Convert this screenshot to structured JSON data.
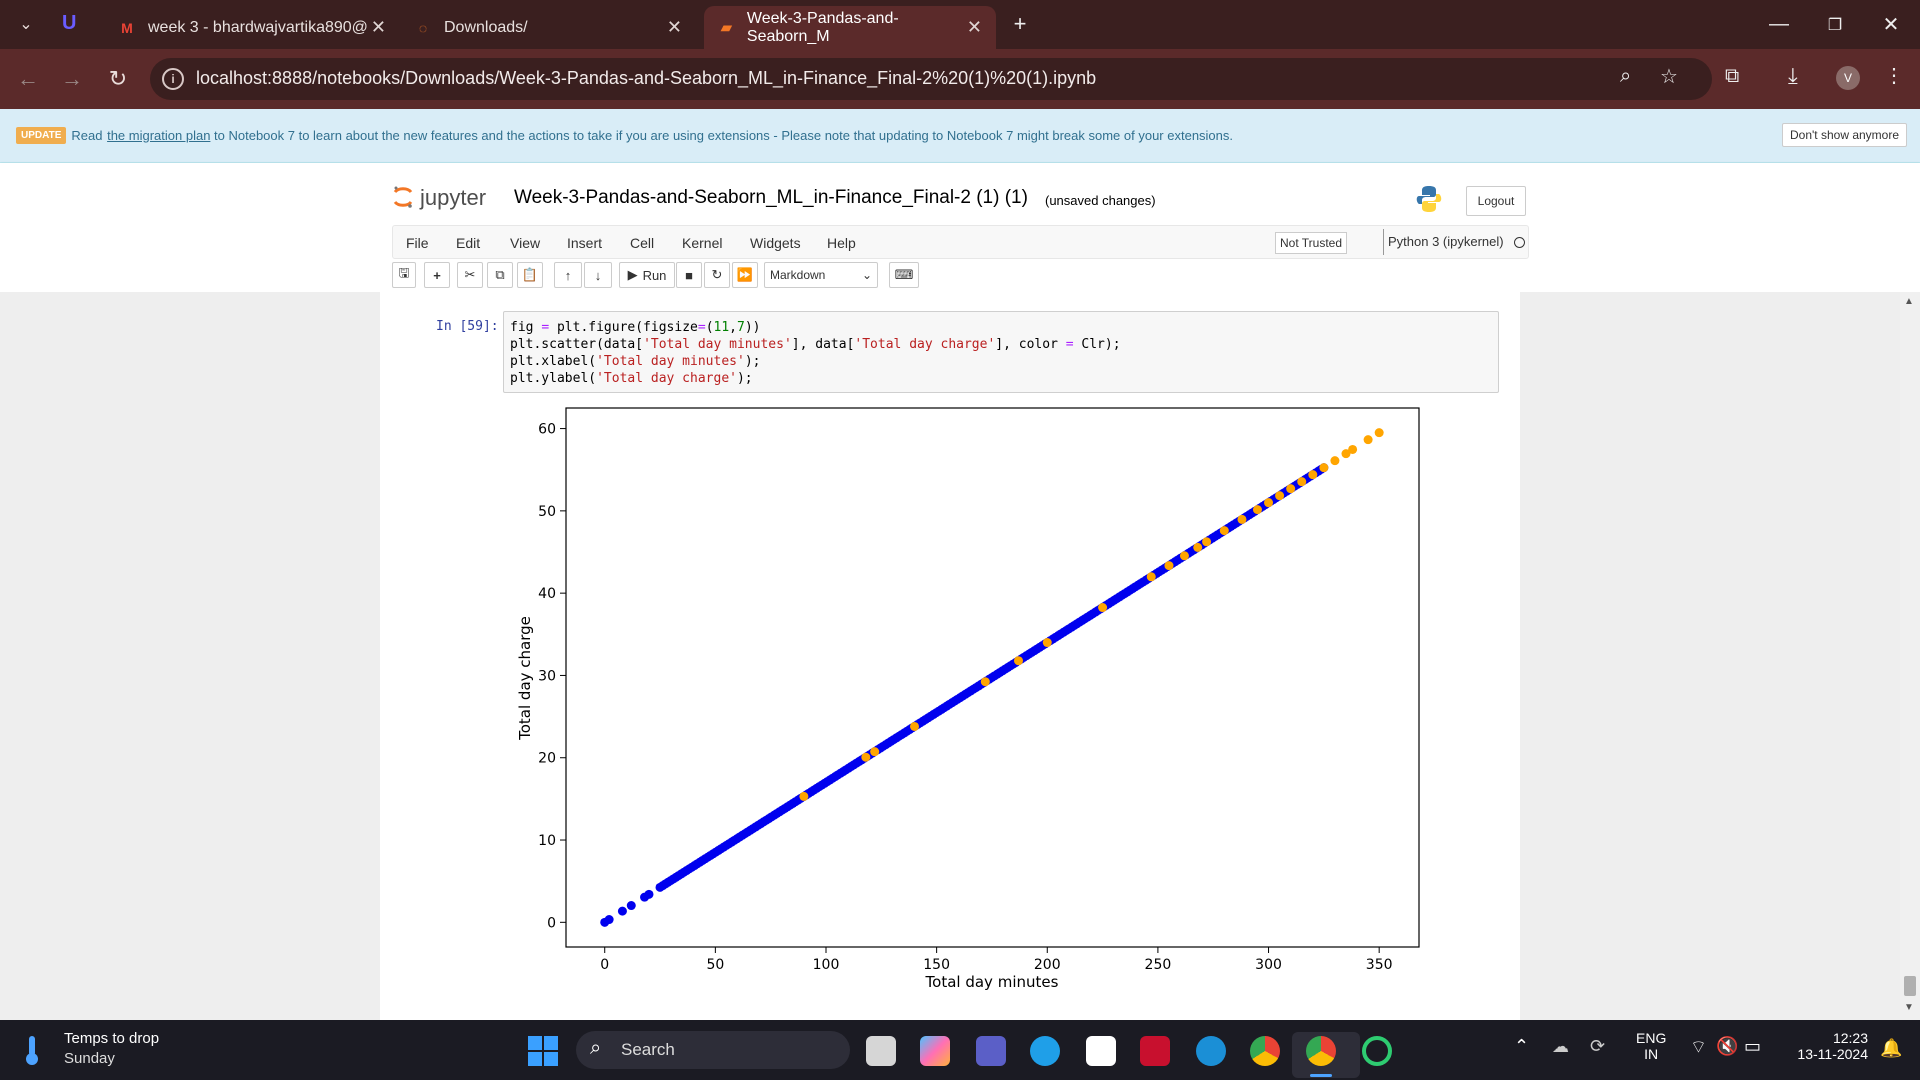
{
  "browser": {
    "tabs": [
      {
        "title": "week 3 - bhardwajvartika890@",
        "icon": "gmail-icon"
      },
      {
        "title": "Downloads/",
        "icon": "jupyter-icon"
      },
      {
        "title": "Week-3-Pandas-and-Seaborn_M",
        "icon": "notebook-icon"
      }
    ],
    "url": "localhost:8888/notebooks/Downloads/Week-3-Pandas-and-Seaborn_ML_in-Finance_Final-2%20(1)%20(1).ipynb",
    "profile_initial": "V"
  },
  "banner": {
    "badge": "UPDATE",
    "text_before": "Read ",
    "link": "the migration plan",
    "text_after": " to Notebook 7 to learn about the new features and the actions to take if you are using extensions - Please note that updating to Notebook 7 might break some of your extensions.",
    "dismiss": "Don't show anymore"
  },
  "jupyter": {
    "logo_text": "jupyter",
    "notebook_title": "Week-3-Pandas-and-Seaborn_ML_in-Finance_Final-2 (1) (1)",
    "save_status": "(unsaved changes)",
    "logout": "Logout",
    "menus": [
      "File",
      "Edit",
      "View",
      "Insert",
      "Cell",
      "Kernel",
      "Widgets",
      "Help"
    ],
    "trust": "Not Trusted",
    "kernel": "Python 3 (ipykernel)",
    "run_label": "Run",
    "cell_type": "Markdown"
  },
  "cell": {
    "prompt": "In [59]:",
    "code_lines": [
      "fig = plt.figure(figsize=(11,7))",
      "plt.scatter(data['Total day minutes'], data['Total day charge'], color = Clr);",
      "plt.xlabel('Total day minutes');",
      "plt.ylabel('Total day charge');"
    ]
  },
  "chart_data": {
    "type": "scatter",
    "xlabel": "Total day minutes",
    "ylabel": "Total day charge",
    "xlim": [
      -17.5,
      368
    ],
    "ylim": [
      -3,
      62.5
    ],
    "xticks": [
      0,
      50,
      100,
      150,
      200,
      250,
      300,
      350
    ],
    "yticks": [
      0,
      10,
      20,
      30,
      40,
      50,
      60
    ],
    "relationship": "charge = 0.17 × minutes",
    "colors": {
      "blue": "#0000ee",
      "orange": "#ffa500"
    },
    "series": [
      {
        "color": "blue",
        "x_range": [
          0,
          325
        ],
        "note": "dense points along the line"
      },
      {
        "color": "orange",
        "x": [
          90,
          118,
          122,
          140,
          172,
          187,
          200,
          225,
          247,
          255,
          262,
          268,
          272,
          280,
          288,
          295,
          300,
          305,
          310,
          315,
          320,
          325,
          330,
          335,
          338,
          345,
          350
        ]
      }
    ]
  },
  "taskbar": {
    "weather_title": "Temps to drop",
    "weather_sub": "Sunday",
    "search": "Search",
    "lang": "ENG",
    "region": "IN",
    "time": "12:23",
    "date": "13-11-2024"
  }
}
